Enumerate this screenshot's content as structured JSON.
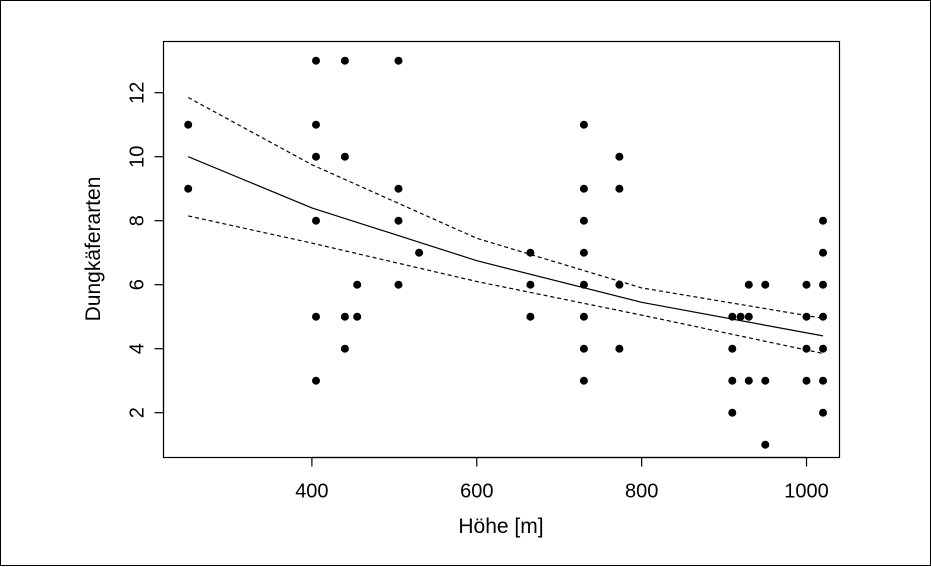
{
  "chart_data": {
    "type": "scatter",
    "xlabel": "Höhe [m]",
    "ylabel": "Dungkäferarten",
    "xlim": [
      220,
      1040
    ],
    "ylim": [
      0.6,
      13.6
    ],
    "xticks": [
      400,
      600,
      800,
      1000
    ],
    "yticks": [
      2,
      4,
      6,
      8,
      10,
      12
    ],
    "x_tick_labels": [
      "400",
      "600",
      "800",
      "1000"
    ],
    "y_tick_labels": [
      "2",
      "4",
      "6",
      "8",
      "10",
      "12"
    ],
    "grid": false,
    "points": [
      {
        "x": 250,
        "y": 11
      },
      {
        "x": 250,
        "y": 9
      },
      {
        "x": 405,
        "y": 13
      },
      {
        "x": 405,
        "y": 11
      },
      {
        "x": 405,
        "y": 10
      },
      {
        "x": 405,
        "y": 8
      },
      {
        "x": 405,
        "y": 5
      },
      {
        "x": 405,
        "y": 3
      },
      {
        "x": 440,
        "y": 13
      },
      {
        "x": 440,
        "y": 10
      },
      {
        "x": 440,
        "y": 5
      },
      {
        "x": 440,
        "y": 4
      },
      {
        "x": 455,
        "y": 6
      },
      {
        "x": 455,
        "y": 5
      },
      {
        "x": 505,
        "y": 13
      },
      {
        "x": 505,
        "y": 9
      },
      {
        "x": 505,
        "y": 8
      },
      {
        "x": 505,
        "y": 6
      },
      {
        "x": 530,
        "y": 7
      },
      {
        "x": 665,
        "y": 7
      },
      {
        "x": 665,
        "y": 6
      },
      {
        "x": 665,
        "y": 5
      },
      {
        "x": 730,
        "y": 11
      },
      {
        "x": 730,
        "y": 9
      },
      {
        "x": 730,
        "y": 8
      },
      {
        "x": 730,
        "y": 7
      },
      {
        "x": 730,
        "y": 6
      },
      {
        "x": 730,
        "y": 5
      },
      {
        "x": 730,
        "y": 4
      },
      {
        "x": 730,
        "y": 3
      },
      {
        "x": 773,
        "y": 10
      },
      {
        "x": 773,
        "y": 9
      },
      {
        "x": 773,
        "y": 6
      },
      {
        "x": 773,
        "y": 4
      },
      {
        "x": 910,
        "y": 5
      },
      {
        "x": 910,
        "y": 4
      },
      {
        "x": 910,
        "y": 3
      },
      {
        "x": 910,
        "y": 2
      },
      {
        "x": 920,
        "y": 5
      },
      {
        "x": 930,
        "y": 6
      },
      {
        "x": 930,
        "y": 5
      },
      {
        "x": 930,
        "y": 3
      },
      {
        "x": 950,
        "y": 6
      },
      {
        "x": 950,
        "y": 3
      },
      {
        "x": 950,
        "y": 1
      },
      {
        "x": 1000,
        "y": 6
      },
      {
        "x": 1000,
        "y": 5
      },
      {
        "x": 1000,
        "y": 4
      },
      {
        "x": 1000,
        "y": 3
      },
      {
        "x": 1020,
        "y": 8
      },
      {
        "x": 1020,
        "y": 7
      },
      {
        "x": 1020,
        "y": 6
      },
      {
        "x": 1020,
        "y": 5
      },
      {
        "x": 1020,
        "y": 4
      },
      {
        "x": 1020,
        "y": 3
      },
      {
        "x": 1020,
        "y": 2
      }
    ],
    "lines": [
      {
        "style": "solid",
        "x": [
          250,
          400,
          600,
          800,
          1020
        ],
        "y": [
          10.0,
          8.4,
          6.75,
          5.45,
          4.4
        ]
      },
      {
        "style": "dashed",
        "x": [
          250,
          400,
          600,
          800,
          1020
        ],
        "y": [
          11.85,
          9.75,
          7.45,
          5.9,
          4.95
        ]
      },
      {
        "style": "dashed",
        "x": [
          250,
          400,
          600,
          800,
          1020
        ],
        "y": [
          8.15,
          7.3,
          6.1,
          5.05,
          3.85
        ]
      }
    ]
  }
}
